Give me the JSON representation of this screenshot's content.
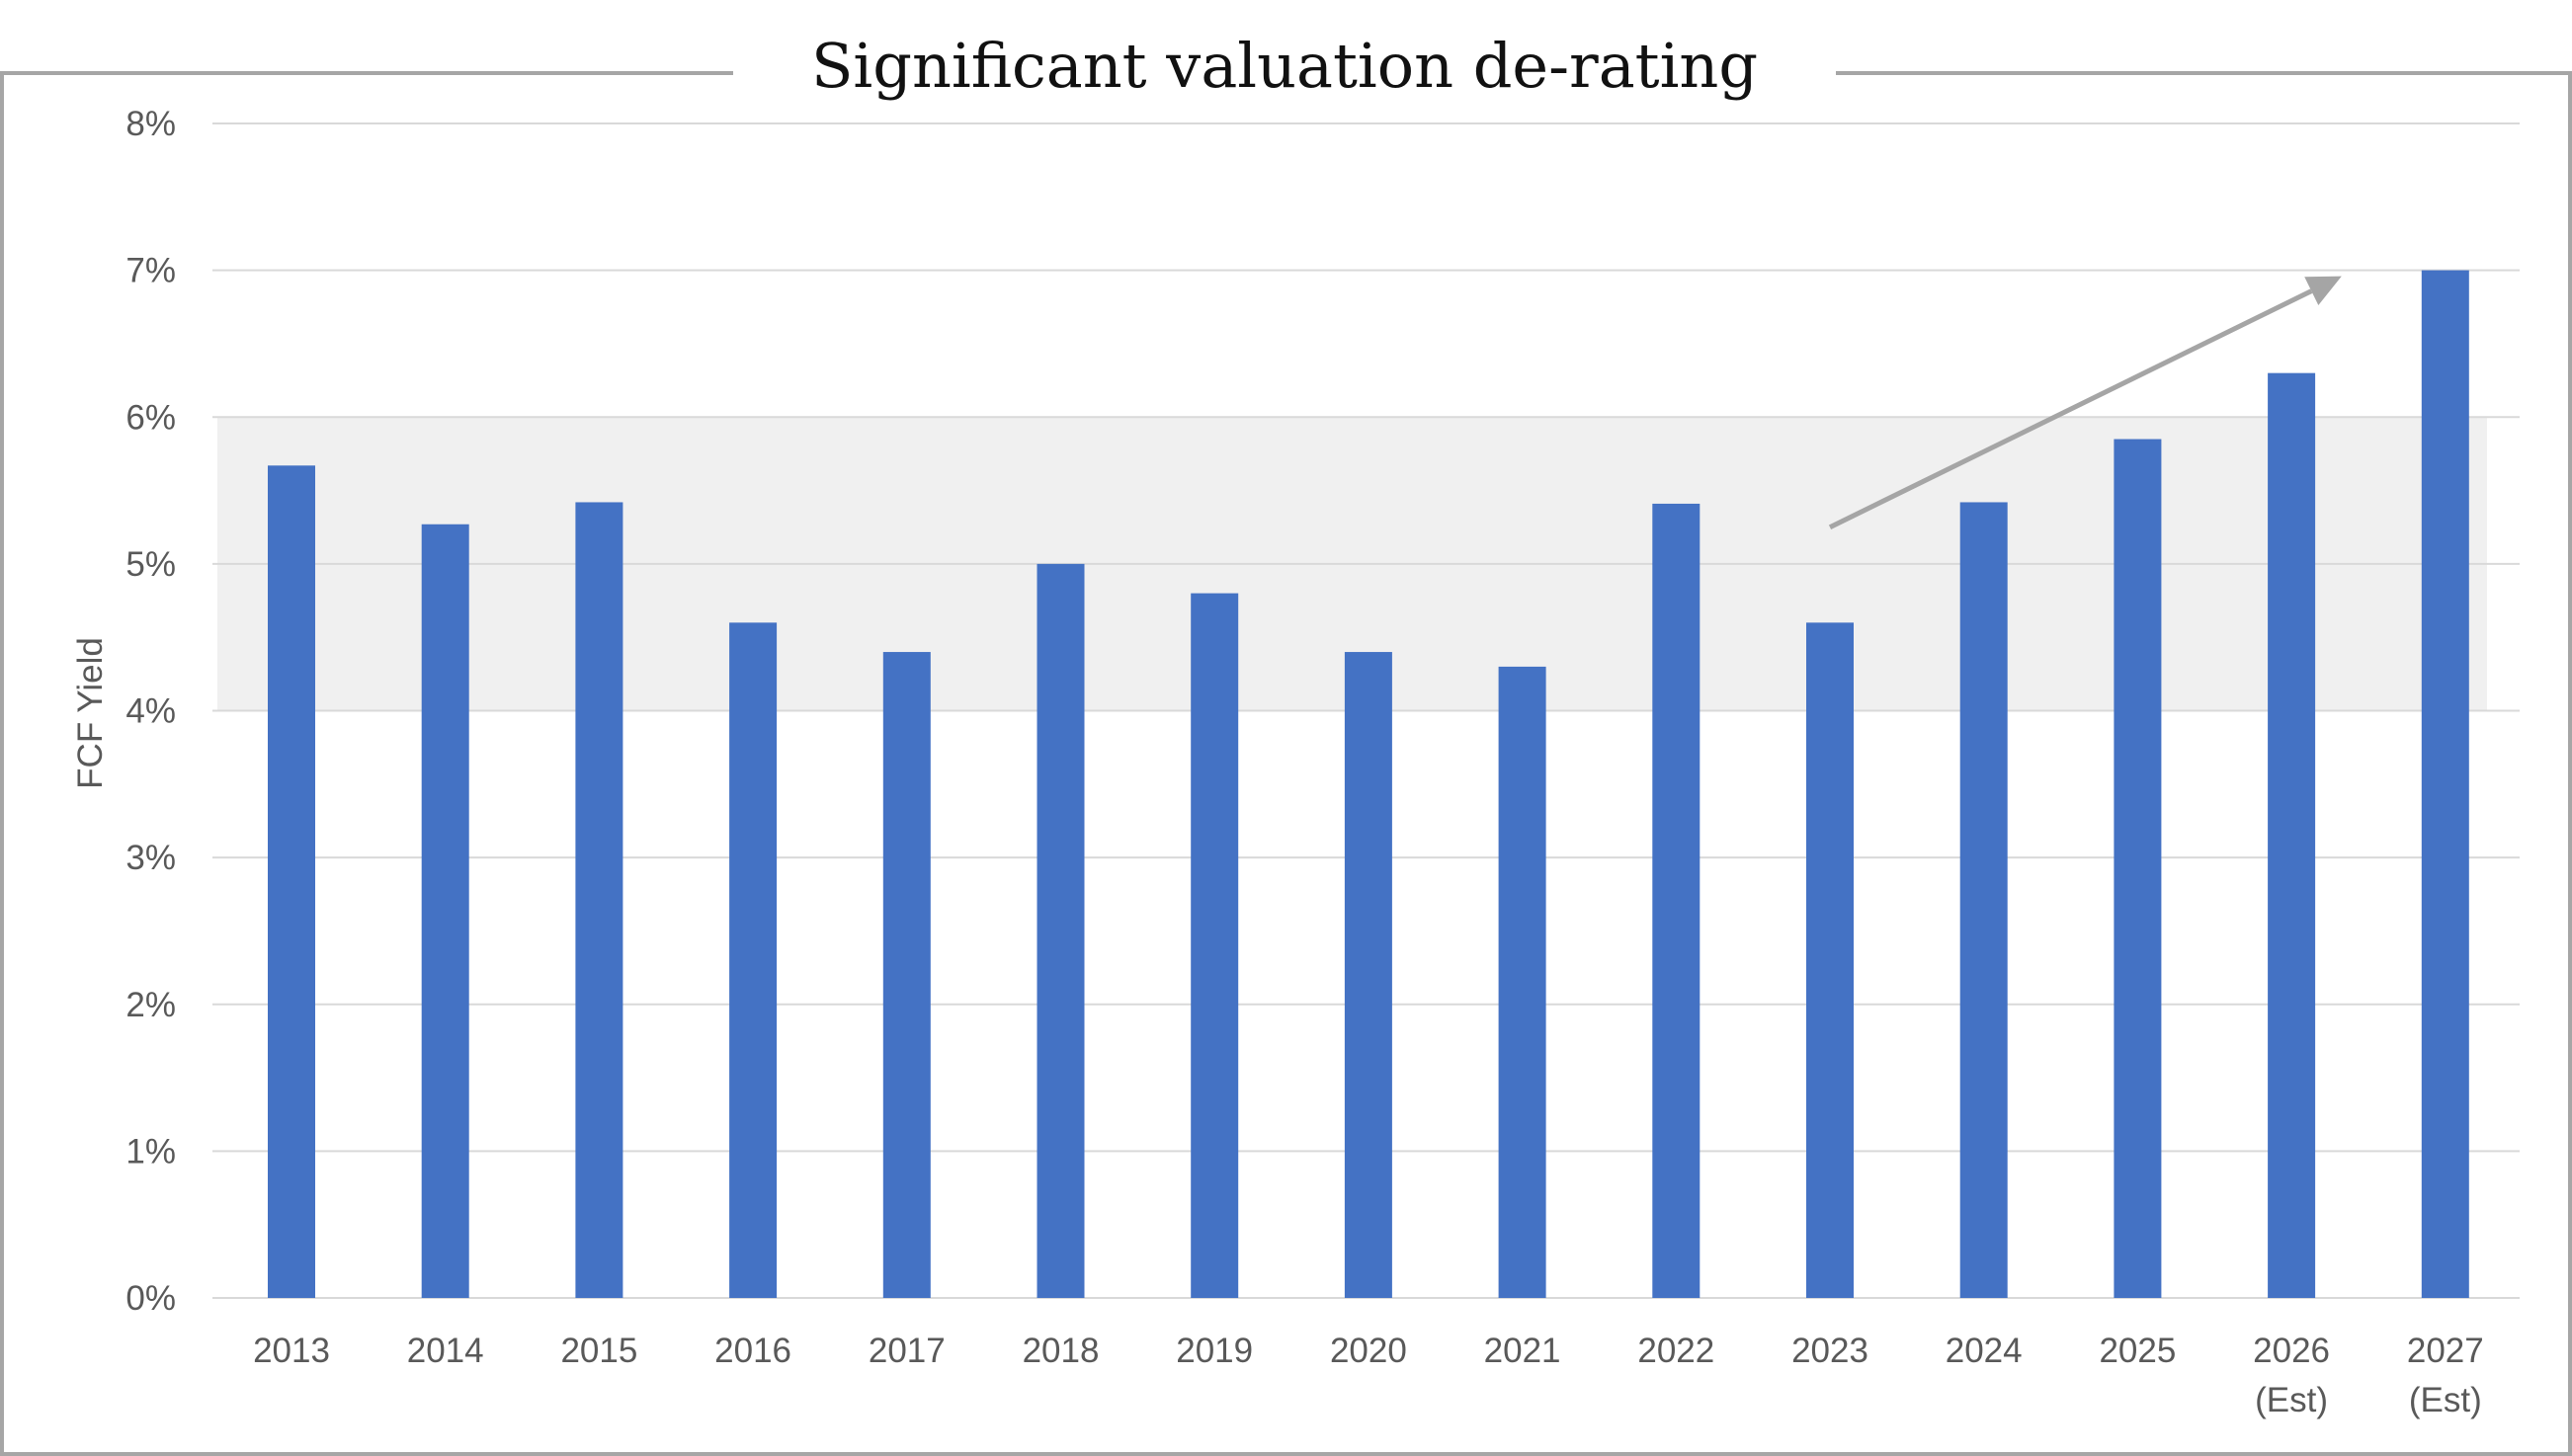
{
  "chart_data": {
    "type": "bar",
    "title": "Significant valuation de-rating",
    "xlabel": "",
    "ylabel": "FCF Yield",
    "ylim": [
      0,
      8
    ],
    "y_ticks": [
      "0%",
      "1%",
      "2%",
      "3%",
      "4%",
      "5%",
      "6%",
      "7%",
      "8%"
    ],
    "categories": [
      [
        "2013"
      ],
      [
        "2014"
      ],
      [
        "2015"
      ],
      [
        "2016"
      ],
      [
        "2017"
      ],
      [
        "2018"
      ],
      [
        "2019"
      ],
      [
        "2020"
      ],
      [
        "2021"
      ],
      [
        "2022"
      ],
      [
        "2023"
      ],
      [
        "2024"
      ],
      [
        "2025"
      ],
      [
        "2026",
        "(Est)"
      ],
      [
        "2027",
        "(Est)"
      ]
    ],
    "values": [
      5.67,
      5.27,
      5.42,
      4.6,
      4.4,
      5.0,
      4.8,
      4.4,
      4.3,
      5.41,
      4.6,
      5.42,
      5.85,
      6.3,
      7.0
    ],
    "shaded_band": [
      4,
      6
    ],
    "trend_arrow": {
      "from": {
        "x": "2023",
        "y": 5.25
      },
      "to": {
        "x": "2027",
        "y": 7.0
      }
    },
    "grid": true,
    "legend": "none",
    "colors": {
      "bar": "#4472C4",
      "band": "#F0F0F0",
      "grid": "#D9D9D9",
      "arrow": "#A5A5A5",
      "frame": "#A6A6A6",
      "text": "#595959"
    }
  }
}
